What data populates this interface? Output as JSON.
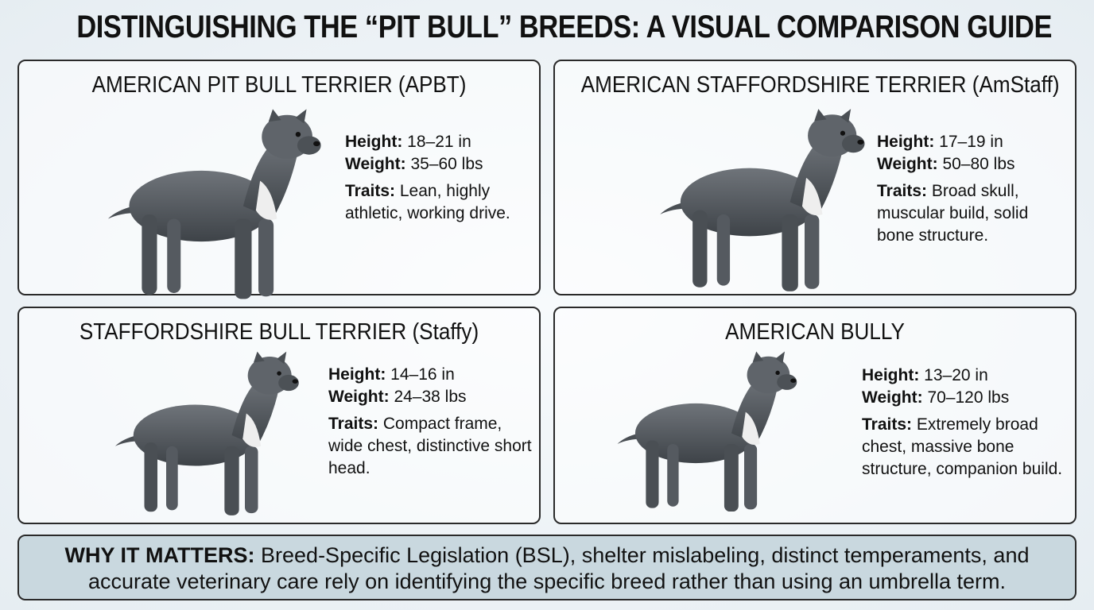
{
  "title": "DISTINGUISHING THE “PIT BULL” BREEDS: A VISUAL COMPARISON GUIDE",
  "cards": [
    {
      "name": "AMERICAN PIT BULL TERRIER (APBT)",
      "height_label": "Height:",
      "height": "18–21 in",
      "weight_label": "Weight:",
      "weight": "35–60 lbs",
      "traits_label": "Traits:",
      "traits": "Lean, highly athletic, working drive."
    },
    {
      "name": "AMERICAN STAFFORDSHIRE TERRIER (AmStaff)",
      "height_label": "Height:",
      "height": "17–19 in",
      "weight_label": "Weight:",
      "weight": "50–80 lbs",
      "traits_label": "Traits:",
      "traits": "Broad skull, muscular build, solid bone structure."
    },
    {
      "name": "STAFFORDSHIRE BULL TERRIER (Staffy)",
      "height_label": "Height:",
      "height": "14–16 in",
      "weight_label": "Weight:",
      "weight": "24–38 lbs",
      "traits_label": "Traits:",
      "traits": "Compact frame, wide chest, distinctive short head."
    },
    {
      "name": "AMERICAN BULLY",
      "height_label": "Height:",
      "height": "13–20 in",
      "weight_label": "Weight:",
      "weight": "70–120 lbs",
      "traits_label": "Traits:",
      "traits": "Extremely broad chest, massive bone structure, companion build."
    }
  ],
  "footer": {
    "label": "WHY IT MATTERS:",
    "text": "Breed-Specific Legislation (BSL), shelter mislabeling, distinct temperaments, and accurate veterinary care rely on identifying the specific breed rather than using an umbrella term."
  }
}
